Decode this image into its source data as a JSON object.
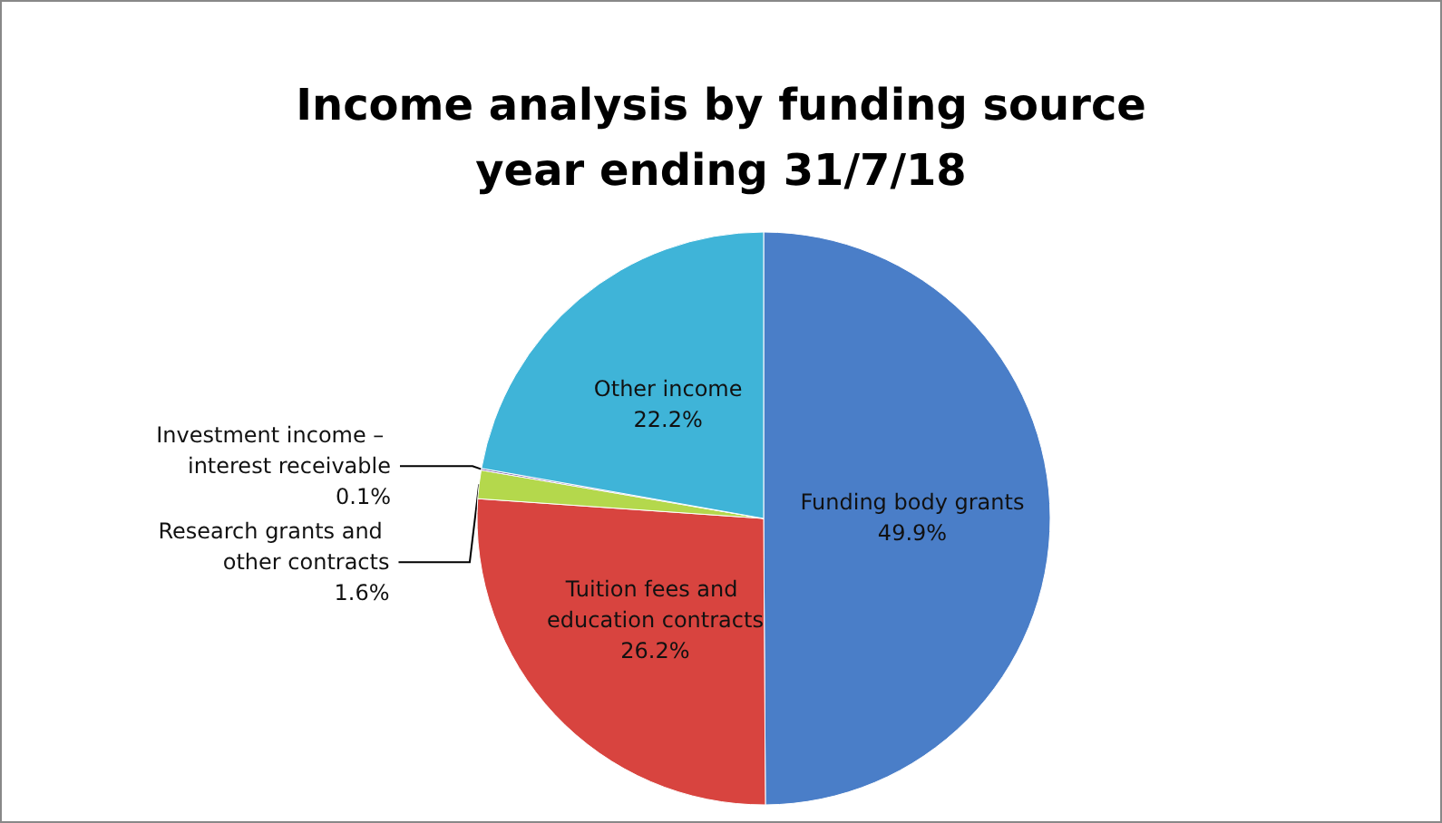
{
  "chart_data": {
    "type": "pie",
    "title": "Income analysis by funding source",
    "subtitle": "year ending 31/7/18",
    "categories": [
      "Funding body grants",
      "Tuition fees and education contracts",
      "Research grants and other contracts",
      "Investment income – interest receivable",
      "Other income"
    ],
    "values": [
      49.9,
      26.2,
      1.6,
      0.1,
      22.2
    ],
    "colors": [
      "#4a7ec8",
      "#d8443f",
      "#b4d84c",
      "#7a5ca8",
      "#3fb4d8"
    ],
    "value_labels": [
      "49.9%",
      "26.2%",
      "1.6%",
      "0.1%",
      "22.2%"
    ],
    "legend": false
  }
}
